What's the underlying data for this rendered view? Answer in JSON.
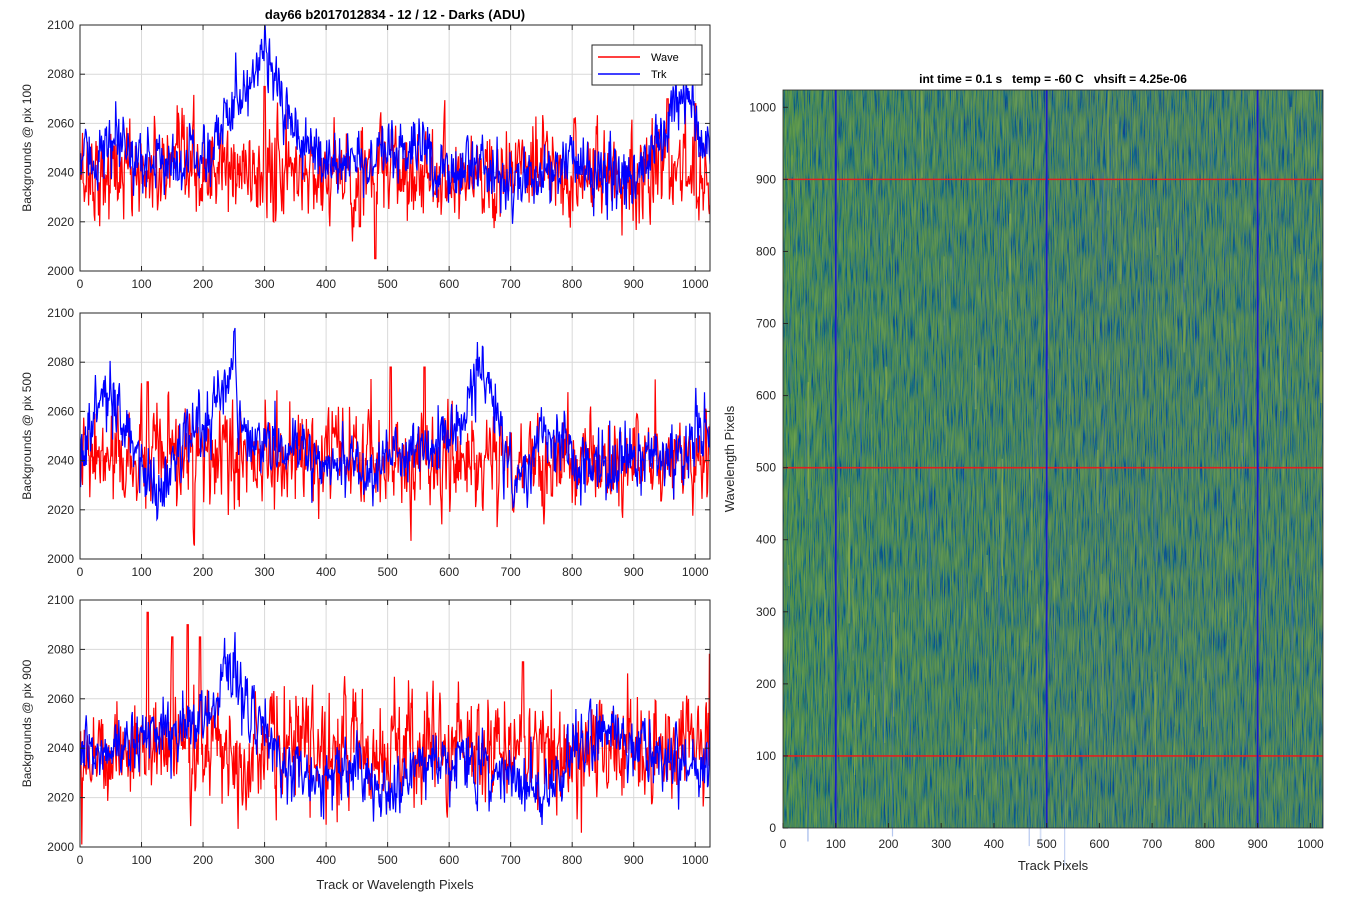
{
  "figure_title": "day66 b2017012834 - 12 / 12 - Darks (ADU)",
  "colors": {
    "wave": "#ff0000",
    "trk": "#0000ff",
    "grid": "#d9d9d9",
    "axis": "#262626",
    "line_red": "#e02020",
    "line_blue": "#1a1acd"
  },
  "chart_data": [
    {
      "type": "line",
      "title": "day66 b2017012834 - 12 / 12 - Darks (ADU)",
      "ylabel": "Backgrounds @ pix 100",
      "xlabel": "",
      "xlim": [
        0,
        1024
      ],
      "ylim": [
        2000,
        2100
      ],
      "xticks": [
        "0",
        "100",
        "200",
        "300",
        "400",
        "500",
        "600",
        "700",
        "800",
        "900",
        "1000"
      ],
      "yticks": [
        "2000",
        "2020",
        "2040",
        "2060",
        "2080",
        "2100"
      ],
      "grid": true,
      "legend": {
        "position": "top-right",
        "entries": [
          "Wave",
          "Trk"
        ]
      },
      "series": [
        {
          "name": "Wave",
          "color": "#ff0000",
          "mean": 2040,
          "noise": 9,
          "peaks": [
            [
              300,
              2075
            ],
            [
              455,
              2018
            ],
            [
              480,
              2005
            ],
            [
              955,
              2070
            ],
            [
              1000,
              2068
            ]
          ]
        },
        {
          "name": "Trk",
          "color": "#0000ff",
          "mean": 2043,
          "noise": 6,
          "trend": [
            [
              0,
              2045
            ],
            [
              60,
              2050
            ],
            [
              100,
              2045
            ],
            [
              180,
              2045
            ],
            [
              220,
              2050
            ],
            [
              250,
              2070
            ],
            [
              280,
              2080
            ],
            [
              300,
              2095
            ],
            [
              320,
              2075
            ],
            [
              340,
              2055
            ],
            [
              400,
              2045
            ],
            [
              500,
              2045
            ],
            [
              560,
              2050
            ],
            [
              600,
              2040
            ],
            [
              650,
              2045
            ],
            [
              700,
              2035
            ],
            [
              760,
              2040
            ],
            [
              800,
              2045
            ],
            [
              850,
              2040
            ],
            [
              900,
              2038
            ],
            [
              930,
              2045
            ],
            [
              960,
              2060
            ],
            [
              990,
              2075
            ],
            [
              1010,
              2055
            ],
            [
              1024,
              2045
            ]
          ]
        }
      ]
    },
    {
      "type": "line",
      "ylabel": "Backgrounds @ pix 500",
      "xlabel": "",
      "xlim": [
        0,
        1024
      ],
      "ylim": [
        2000,
        2100
      ],
      "xticks": [
        "0",
        "100",
        "200",
        "300",
        "400",
        "500",
        "600",
        "700",
        "800",
        "900",
        "1000"
      ],
      "yticks": [
        "2000",
        "2020",
        "2040",
        "2060",
        "2080",
        "2100"
      ],
      "grid": true,
      "series": [
        {
          "name": "Wave",
          "color": "#ff0000",
          "mean": 2040,
          "noise": 9,
          "peaks": [
            [
              110,
              2072
            ],
            [
              505,
              2078
            ],
            [
              560,
              2078
            ]
          ]
        },
        {
          "name": "Trk",
          "color": "#0000ff",
          "mean": 2042,
          "noise": 6,
          "trend": [
            [
              0,
              2040
            ],
            [
              40,
              2070
            ],
            [
              60,
              2055
            ],
            [
              100,
              2040
            ],
            [
              130,
              2025
            ],
            [
              170,
              2050
            ],
            [
              210,
              2055
            ],
            [
              240,
              2078
            ],
            [
              270,
              2050
            ],
            [
              320,
              2045
            ],
            [
              400,
              2040
            ],
            [
              500,
              2038
            ],
            [
              560,
              2045
            ],
            [
              620,
              2055
            ],
            [
              650,
              2078
            ],
            [
              680,
              2060
            ],
            [
              700,
              2030
            ],
            [
              720,
              2035
            ],
            [
              760,
              2050
            ],
            [
              800,
              2040
            ],
            [
              850,
              2035
            ],
            [
              900,
              2045
            ],
            [
              940,
              2040
            ],
            [
              980,
              2045
            ],
            [
              1024,
              2050
            ]
          ]
        }
      ]
    },
    {
      "type": "line",
      "ylabel": "Backgrounds @ pix 900",
      "xlabel": "Track or Wavelength Pixels",
      "xlim": [
        0,
        1024
      ],
      "ylim": [
        2000,
        2100
      ],
      "xticks": [
        "0",
        "100",
        "200",
        "300",
        "400",
        "500",
        "600",
        "700",
        "800",
        "900",
        "1000"
      ],
      "yticks": [
        "2000",
        "2020",
        "2040",
        "2060",
        "2080",
        "2100"
      ],
      "grid": true,
      "series": [
        {
          "name": "Wave",
          "color": "#ff0000",
          "mean": 2040,
          "noise": 10,
          "peaks": [
            [
              110,
              2095
            ],
            [
              150,
              2085
            ],
            [
              175,
              2090
            ],
            [
              195,
              2085
            ],
            [
              720,
              2075
            ],
            [
              1024,
              2078
            ]
          ]
        },
        {
          "name": "Trk",
          "color": "#0000ff",
          "mean": 2035,
          "noise": 6,
          "trend": [
            [
              0,
              2035
            ],
            [
              60,
              2040
            ],
            [
              100,
              2045
            ],
            [
              200,
              2050
            ],
            [
              240,
              2075
            ],
            [
              270,
              2060
            ],
            [
              320,
              2035
            ],
            [
              400,
              2028
            ],
            [
              450,
              2030
            ],
            [
              500,
              2020
            ],
            [
              550,
              2035
            ],
            [
              600,
              2035
            ],
            [
              700,
              2030
            ],
            [
              760,
              2020
            ],
            [
              800,
              2040
            ],
            [
              850,
              2050
            ],
            [
              900,
              2040
            ],
            [
              1000,
              2030
            ],
            [
              1024,
              2032
            ]
          ]
        }
      ]
    },
    {
      "type": "heatmap",
      "title": "int time = 0.1 s   temp = -60 C   vhsift = 4.25e-06",
      "xlabel": "Track Pixels",
      "ylabel": "Wavelength Pixels",
      "xlim": [
        0,
        1024
      ],
      "ylim": [
        0,
        1024
      ],
      "xticks": [
        "0",
        "100",
        "200",
        "300",
        "400",
        "500",
        "600",
        "700",
        "800",
        "900",
        "1000"
      ],
      "yticks": [
        "0",
        "100",
        "200",
        "300",
        "400",
        "500",
        "600",
        "700",
        "800",
        "900",
        "1000"
      ],
      "base_color": "#18a7b0",
      "vertical_lines": [
        100,
        500,
        900
      ],
      "horizontal_lines": [
        100,
        500,
        900
      ]
    }
  ]
}
